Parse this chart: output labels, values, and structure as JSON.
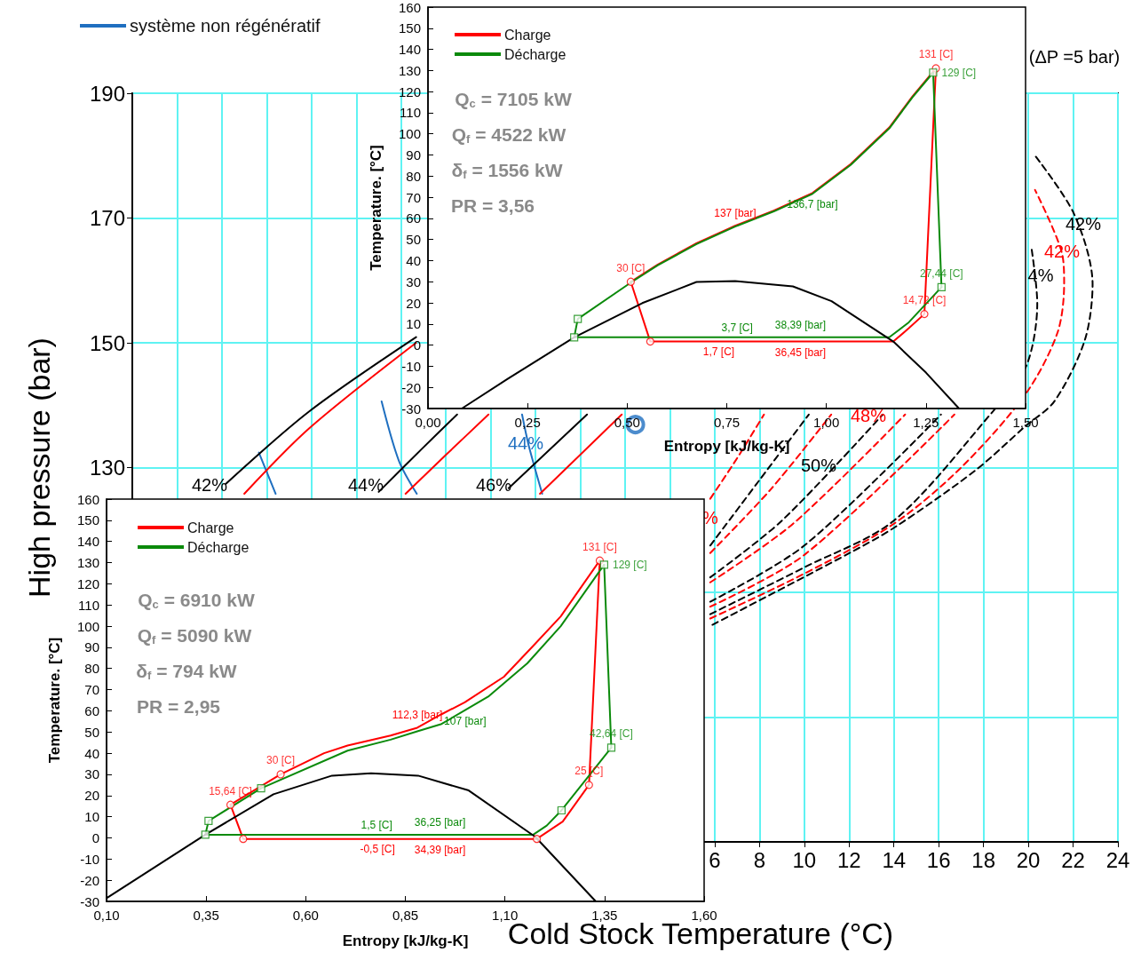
{
  "chart_data": [
    {
      "type": "line",
      "xlabel": "Cold Stock Temperature (°C)",
      "ylabel": "High pressure (bar)",
      "xlim": [
        -20,
        24
      ],
      "ylim": [
        70,
        190
      ],
      "xticks": [
        {
          "value": -20,
          "label": null
        },
        {
          "value": -18,
          "label": null
        },
        {
          "value": -16,
          "label": null
        },
        {
          "value": -14,
          "label": null
        },
        {
          "value": -12,
          "label": null
        },
        {
          "value": -10,
          "label": null
        },
        {
          "value": -8,
          "label": null
        },
        {
          "value": -6,
          "label": null
        },
        {
          "value": -4,
          "label": null
        },
        {
          "value": -2,
          "label": null
        },
        {
          "value": 0,
          "label": null
        },
        {
          "value": 2,
          "label": null
        },
        {
          "value": 4,
          "label": null
        },
        6,
        8,
        10,
        12,
        14,
        16,
        18,
        20,
        22,
        24
      ],
      "yticks": [
        {
          "value": 70,
          "label": null
        },
        {
          "value": 90,
          "label": null
        },
        {
          "value": 110,
          "label": null
        },
        130,
        150,
        170,
        190
      ],
      "grid": true,
      "legend": "top left",
      "annotations": [
        "42%",
        "44%",
        "46%",
        "44%",
        "50%",
        "48%",
        "%",
        "4%",
        "42%",
        "42%",
        "(ΔP =5 bar)"
      ],
      "series": [
        {
          "name": "système non régénératif",
          "color": "#1f6fc0",
          "line_style": "solid",
          "x": [
            -14.35,
            -13.6
          ],
          "values": [
            132.4,
            125.8
          ]
        },
        {
          "color": "#1f6fc0",
          "line_style": "solid",
          "x": [
            -8.87,
            -8.1,
            -7.3
          ],
          "values": [
            140.6,
            131.1,
            125.8
          ]
        },
        {
          "color": "#1f6fc0",
          "line_style": "solid",
          "x": [
            -2.6,
            -2.3,
            -1.7
          ],
          "values": [
            138.5,
            133.5,
            125.8
          ]
        },
        {
          "color": "#000000",
          "line_style": "solid",
          "x": [
            -15.82,
            -12.1,
            -7.33
          ],
          "values": [
            127.4,
            139,
            150.9
          ]
        },
        {
          "color": "#ff0000",
          "line_style": "solid",
          "x": [
            -15,
            -12.1,
            -7.33
          ],
          "values": [
            125.8,
            136.3,
            150
          ]
        },
        {
          "color": "#000000",
          "line_style": "solid",
          "x": [
            -9,
            -7.1,
            -5.5
          ],
          "values": [
            126.1,
            132.9,
            138.5
          ]
        },
        {
          "color": "#ff0000",
          "line_style": "solid",
          "x": [
            -7.8,
            -5.95,
            -4.1
          ],
          "values": [
            125.8,
            132.2,
            138.5
          ]
        },
        {
          "color": "#000000",
          "line_style": "solid",
          "x": [
            -3.2,
            0.3
          ],
          "values": [
            126.7,
            138.5
          ]
        },
        {
          "color": "#ff0000",
          "line_style": "solid",
          "x": [
            -1.8,
            1.85
          ],
          "values": [
            125.8,
            138.5
          ]
        },
        {
          "color": "#ff0000",
          "line_style": "dashed",
          "x": [
            5.8,
            7,
            8.2
          ],
          "values": [
            125,
            131.5,
            138.5
          ]
        },
        {
          "color": "#000000",
          "line_style": "dashed",
          "x": [
            5.8,
            8,
            10.2
          ],
          "values": [
            117.5,
            128,
            138.5
          ]
        },
        {
          "color": "#ff0000",
          "line_style": "dashed",
          "x": [
            5.8,
            8.5,
            11.2
          ],
          "values": [
            116.3,
            126.5,
            138.5
          ]
        },
        {
          "color": "#000000",
          "line_style": "dashed",
          "x": [
            5.8,
            9,
            13.5
          ],
          "values": [
            112.4,
            121.5,
            138.5
          ]
        },
        {
          "color": "#ff0000",
          "line_style": "dashed",
          "x": [
            5.8,
            9.5,
            14.5
          ],
          "values": [
            111.6,
            121,
            138.5
          ]
        },
        {
          "color": "#000000",
          "line_style": "dashed",
          "x": [
            5.8,
            10,
            16.1
          ],
          "values": [
            108.5,
            117.5,
            138.5
          ]
        },
        {
          "color": "#ff0000",
          "line_style": "dashed",
          "x": [
            5.8,
            10,
            16.7
          ],
          "values": [
            107.7,
            116,
            138.5
          ]
        },
        {
          "color": "#000000",
          "line_style": "dashed",
          "x": [
            5.8,
            10,
            14,
            18.3,
            19.9,
            20.4,
            20.15
          ],
          "values": [
            106.5,
            114,
            121.5,
            138.5,
            146.2,
            156.3,
            165
          ]
        },
        {
          "color": "#ff0000",
          "line_style": "dashed",
          "x": [
            5.8,
            10,
            14,
            17,
            19.9,
            21.3,
            21.6,
            21.5,
            20.3
          ],
          "values": [
            105.8,
            113,
            121,
            130,
            141.9,
            151.6,
            159.5,
            164.4,
            174.5
          ]
        },
        {
          "color": "#000000",
          "line_style": "dashed",
          "x": [
            5.9,
            12.02,
            14.07,
            17.62,
            19.83,
            21.18,
            22.52,
            22.87,
            22.05,
            20.3
          ],
          "values": [
            104.8,
            116.3,
            120.5,
            129.5,
            136.5,
            140.7,
            150.4,
            159.4,
            170.6,
            180
          ]
        },
        {
          "type": "scatter",
          "color": "#1f6fc0",
          "marker": "circle",
          "x": [
            2.46
          ],
          "values": [
            136.9
          ]
        }
      ]
    },
    {
      "type": "line",
      "xlabel": "Entropy [kJ/kg-K]",
      "ylabel": "Temperature. [°C]",
      "xlim": [
        0,
        1.5
      ],
      "ylim": [
        -30,
        160
      ],
      "xticks": [
        {
          "value": 0,
          "label": "0,00"
        },
        {
          "value": 0.25,
          "label": "0,25"
        },
        {
          "value": 0.5,
          "label": "0,50"
        },
        {
          "value": 0.75,
          "label": "0,75"
        },
        {
          "value": 1,
          "label": "1,00"
        },
        {
          "value": 1.25,
          "label": "1,25"
        },
        {
          "value": 1.5,
          "label": "1,50"
        }
      ],
      "yticks": [
        -30,
        -20,
        -10,
        0,
        10,
        20,
        30,
        40,
        50,
        60,
        70,
        80,
        90,
        100,
        110,
        120,
        130,
        140,
        150,
        160
      ],
      "legend": "top left",
      "annotations": [
        "Q$_{c}$ = 7105 kW",
        "Q$_{f}$ = 4522 kW",
        "δ$_{f}$ = 1556 kW",
        "PR = 3,56",
        {
          "text": "137 [bar]",
          "x": 0.771,
          "y": 56.5
        },
        {
          "text": "136,7 [bar]",
          "x": 0.965,
          "y": 71.6
        },
        {
          "text": "36,45 [bar]",
          "x": 0.935,
          "y": 1.7
        },
        {
          "text": "38,39 [bar]",
          "x": 0.935,
          "y": 3.7
        }
      ],
      "series": [
        {
          "name": "Charge",
          "color": "#ff0000",
          "x": [
            0.509,
            0.558,
            0.73,
            0.935,
            1.168,
            1.207,
            1.246,
            1.275
          ],
          "values": [
            30,
            1.7,
            1.7,
            1.7,
            1.7,
            8,
            14.72,
            131
          ],
          "value_labels": [
            null,
            null,
            "1,7 [C]",
            null,
            null,
            null,
            null,
            null
          ]
        },
        {
          "color": "#ff0000",
          "x": [
            0.509,
            0.577,
            0.674,
            0.771,
            0.868,
            0.965,
            1.061,
            1.158,
            1.216,
            1.275
          ],
          "values": [
            30,
            38.2,
            48.2,
            56.5,
            63.7,
            72,
            85.7,
            103,
            117.7,
            131
          ]
        },
        {
          "name": "Décharge",
          "color": "#0b8a0b",
          "x": [
            0.367,
            0.776,
            0.935,
            1.158,
            1.207,
            1.289
          ],
          "values": [
            3.7,
            3.7,
            3.7,
            3.7,
            10.8,
            27.44
          ],
          "value_labels": [
            null,
            "3,7 [C]",
            null,
            null,
            null,
            null
          ]
        },
        {
          "color": "#0b8a0b",
          "x": [
            1.268,
            1.289
          ],
          "values": [
            129,
            27.44
          ]
        },
        {
          "color": "#0b8a0b",
          "x": [
            0.367,
            0.376,
            0.509,
            0.577,
            0.674,
            0.771,
            0.868,
            0.965,
            1.061,
            1.158,
            1.216,
            1.268
          ],
          "values": [
            3.7,
            12.4,
            29.6,
            37.8,
            47.8,
            56.1,
            63.3,
            71.6,
            85.3,
            102.6,
            117.3,
            129
          ]
        },
        {
          "color": "#000000",
          "x": [
            0.085,
            0.2,
            0.367,
            0.538,
            0.674,
            0.771,
            0.916,
            1.013,
            1.168,
            1.25,
            1.333
          ],
          "values": [
            -30,
            -16,
            3.7,
            19.9,
            29.9,
            30.3,
            27.8,
            20.8,
            1.7,
            -13,
            -30
          ]
        },
        {
          "type": "scatter",
          "color": "#ff0000",
          "marker": "circle",
          "x": [
            0.509,
            0.558,
            1.246,
            1.275
          ],
          "values": [
            30,
            1.7,
            14.72,
            131
          ],
          "value_labels": [
            "30 [C]",
            null,
            "14,72 [C]",
            "131 [C]"
          ]
        },
        {
          "type": "scatter",
          "color": "#0b8a0b",
          "marker": "square",
          "x": [
            0.376,
            0.367,
            1.289,
            1.268
          ],
          "values": [
            12.4,
            3.7,
            27.44,
            129
          ],
          "value_labels": [
            null,
            null,
            "27,44 [C]",
            "129 [C]"
          ]
        }
      ]
    },
    {
      "type": "line",
      "xlabel": "Entropy [kJ/kg-K]",
      "ylabel": "Temperature. [°C]",
      "xlim": [
        0.1,
        1.6
      ],
      "ylim": [
        -30,
        160
      ],
      "xticks": [
        {
          "value": 0.1,
          "label": "0,10"
        },
        {
          "value": 0.35,
          "label": "0,35"
        },
        {
          "value": 0.6,
          "label": "0,60"
        },
        {
          "value": 0.85,
          "label": "0,85"
        },
        {
          "value": 1.1,
          "label": "1,10"
        },
        {
          "value": 1.35,
          "label": "1,35"
        },
        {
          "value": 1.6,
          "label": "1,60"
        }
      ],
      "yticks": [
        -30,
        -20,
        -10,
        0,
        10,
        20,
        30,
        40,
        50,
        60,
        70,
        80,
        90,
        100,
        110,
        120,
        130,
        140,
        150,
        160
      ],
      "legend": "top left",
      "annotations": [
        "Q$_{c}$ = 6910 kW",
        "Q$_{f}$ = 5090 kW",
        "δ$_{f}$ = 794 kW",
        "PR = 2,95",
        {
          "text": "112,3 [bar]",
          "x": 0.88,
          "y": 52
        },
        {
          "text": "107 [bar]",
          "x": 1,
          "y": 60.3
        },
        {
          "text": "34,39 [bar]",
          "x": 0.937,
          "y": -0.5
        },
        {
          "text": "36,25 [bar]",
          "x": 0.937,
          "y": 1.5
        }
      ],
      "series": [
        {
          "name": "Charge",
          "color": "#ff0000",
          "x": [
            0.411,
            0.443,
            0.78,
            0.937,
            1.18,
            1.245,
            1.311,
            1.338
          ],
          "values": [
            15.64,
            -0.5,
            -0.5,
            -0.5,
            -0.5,
            7.7,
            25,
            131
          ],
          "value_labels": [
            null,
            null,
            "-0,5 [C]",
            null,
            null,
            null,
            null,
            null
          ]
        },
        {
          "color": "#ff0000",
          "x": [
            0.411,
            0.537,
            0.646,
            0.705,
            0.813,
            0.88,
            0.941,
            0.999,
            1.097,
            1.171,
            1.24,
            1.338
          ],
          "values": [
            15.64,
            30,
            40,
            43.6,
            48.3,
            52,
            58.4,
            64,
            76,
            90.7,
            104.6,
            131
          ]
        },
        {
          "name": "Décharge",
          "color": "#0b8a0b",
          "x": [
            0.348,
            0.778,
            0.937,
            1.171,
            1.205,
            1.242,
            1.367
          ],
          "values": [
            1.5,
            1.5,
            1.5,
            1.5,
            5.8,
            13,
            42.64
          ],
          "value_labels": [
            null,
            "1,5 [C]",
            null,
            null,
            null,
            null,
            null
          ]
        },
        {
          "color": "#0b8a0b",
          "x": [
            1.349,
            1.367
          ],
          "values": [
            129,
            42.64
          ]
        },
        {
          "color": "#0b8a0b",
          "x": [
            0.348,
            0.356,
            0.488,
            0.705,
            0.813,
            0.88,
            0.941,
            1,
            1.058,
            1.156,
            1.24,
            1.349
          ],
          "values": [
            1.5,
            8,
            23.4,
            41.2,
            46.4,
            50.3,
            53.8,
            60.3,
            66.7,
            82.4,
            100,
            129
          ]
        },
        {
          "color": "#000000",
          "x": [
            0.1,
            0.348,
            0.519,
            0.666,
            0.764,
            0.882,
            1.009,
            1.176,
            1.328
          ],
          "values": [
            -28.5,
            1.5,
            20.6,
            29.4,
            30.5,
            29.4,
            22.4,
            0.5,
            -30
          ]
        },
        {
          "type": "scatter",
          "color": "#ff0000",
          "marker": "circle",
          "x": [
            1.338,
            1.311,
            1.18,
            0.443,
            0.411,
            0.537
          ],
          "values": [
            131,
            25,
            -0.5,
            -0.5,
            15.64,
            30
          ],
          "value_labels": [
            "131 [C]",
            "25 [C]",
            null,
            null,
            "15,64 [C]",
            "30 [C]"
          ]
        },
        {
          "type": "scatter",
          "color": "#0b8a0b",
          "marker": "square",
          "x": [
            1.349,
            1.367,
            1.242,
            0.348,
            0.356,
            0.488
          ],
          "values": [
            129,
            42.64,
            13,
            1.5,
            8,
            23.4
          ],
          "value_labels": [
            "129 [C]",
            "42,64 [C]",
            null,
            null,
            null,
            null
          ]
        }
      ]
    }
  ]
}
